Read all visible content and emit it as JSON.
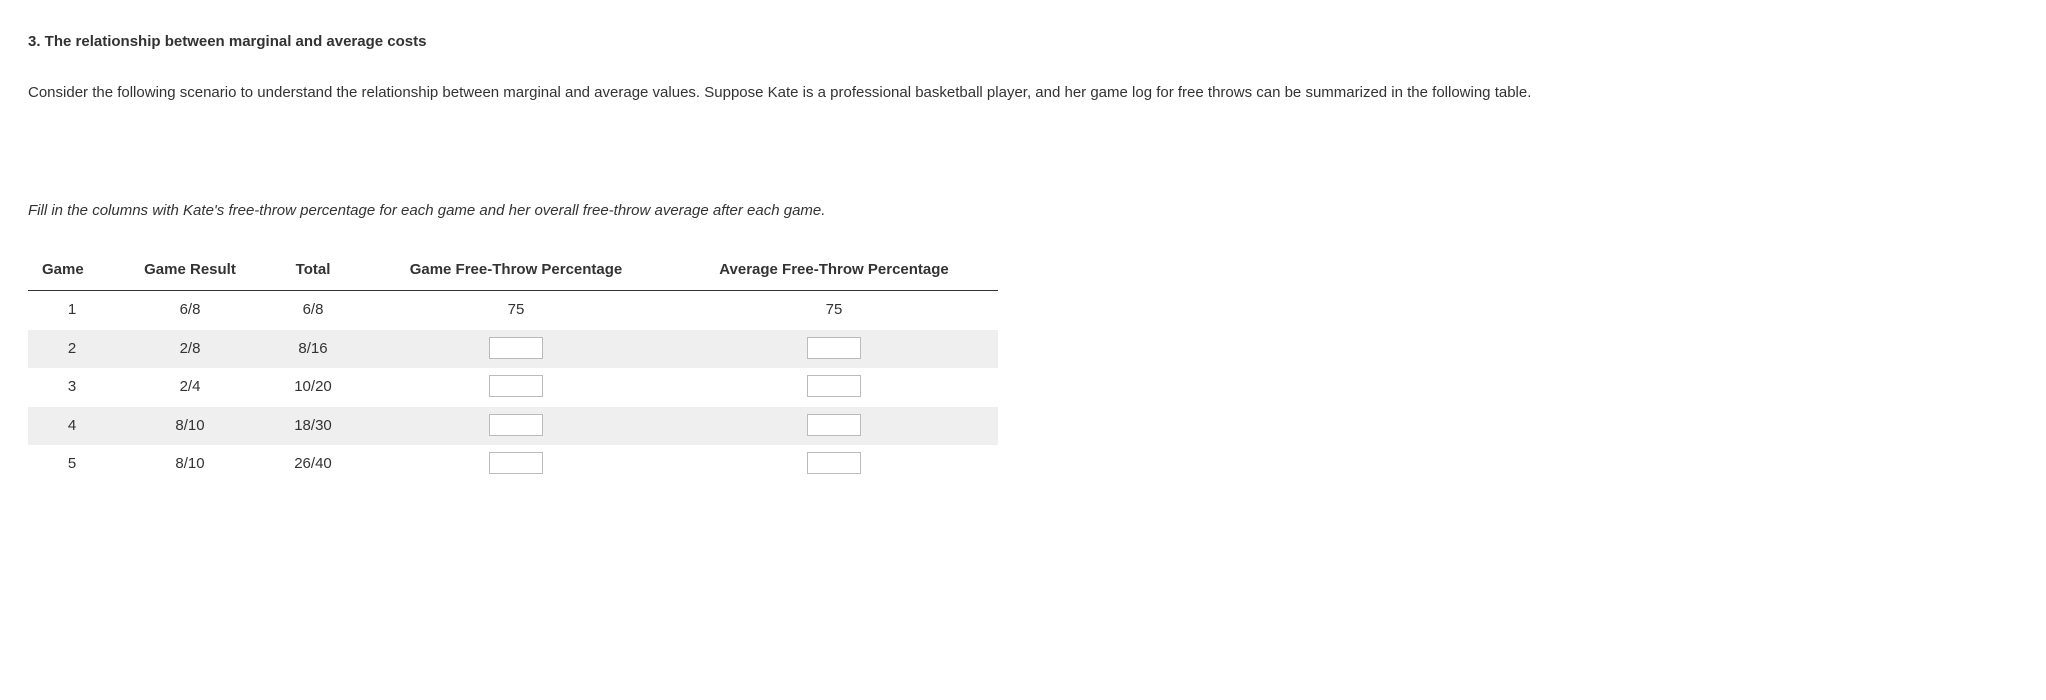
{
  "heading": "3. The relationship between marginal and average costs",
  "paragraph": "Consider the following scenario to understand the relationship between marginal and average values. Suppose Kate is a professional basketball player, and her game log for free throws can be summarized in the following table.",
  "instruction": "Fill in the columns with Kate's free-throw percentage for each game and her overall free-throw average after each game.",
  "table": {
    "columns": [
      "Game",
      "Game Result",
      "Total",
      "Game Free-Throw Percentage",
      "Average Free-Throw Percentage"
    ],
    "rows": [
      {
        "game": "1",
        "result": "6/8",
        "total": "6/8",
        "gftp": "75",
        "aftp": "75",
        "gftp_input": false,
        "aftp_input": false
      },
      {
        "game": "2",
        "result": "2/8",
        "total": "8/16",
        "gftp": "",
        "aftp": "",
        "gftp_input": true,
        "aftp_input": true
      },
      {
        "game": "3",
        "result": "2/4",
        "total": "10/20",
        "gftp": "",
        "aftp": "",
        "gftp_input": true,
        "aftp_input": true
      },
      {
        "game": "4",
        "result": "8/10",
        "total": "18/30",
        "gftp": "",
        "aftp": "",
        "gftp_input": true,
        "aftp_input": true
      },
      {
        "game": "5",
        "result": "8/10",
        "total": "26/40",
        "gftp": "",
        "aftp": "",
        "gftp_input": true,
        "aftp_input": true
      }
    ]
  }
}
